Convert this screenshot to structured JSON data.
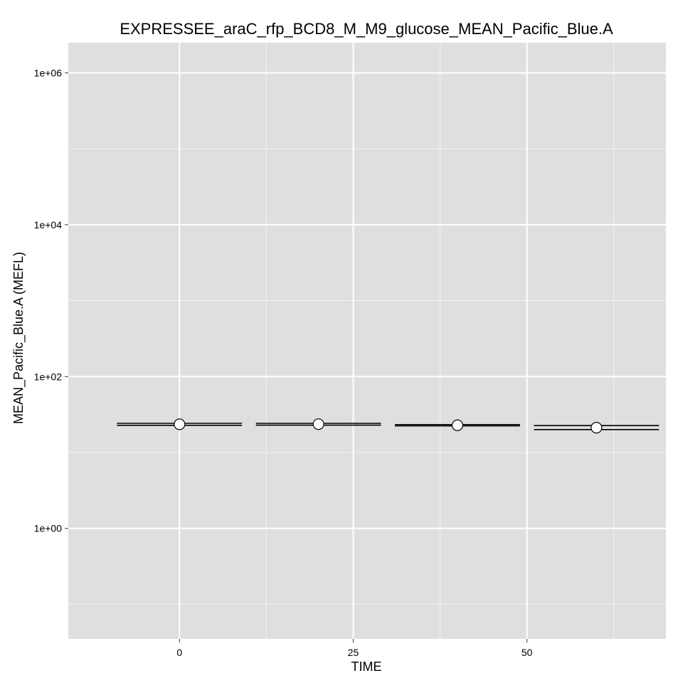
{
  "chart_data": {
    "type": "scatter",
    "title": "EXPRESSEE_araC_rfp_BCD8_M_M9_glucose_MEAN_Pacific_Blue.A",
    "xlabel": "TIME",
    "ylabel": "MEAN_Pacific_Blue.A  (MEFL)",
    "x_ticks": [
      0,
      25,
      50
    ],
    "x_tick_labels": [
      "0",
      "25",
      "50"
    ],
    "y_ticks": [
      1,
      100,
      10000,
      1000000
    ],
    "y_tick_labels": [
      "1e+00",
      "1e+02",
      "1e+04",
      "1e+06"
    ],
    "y_scale": "log10",
    "xlim": [
      -16,
      70
    ],
    "ylim": [
      0.035,
      2500000
    ],
    "grid": true,
    "background": "#dfdfdf",
    "gridline_color": "#ffffff",
    "points": [
      {
        "x": 0,
        "y": 23.5
      },
      {
        "x": 20,
        "y": 23.6
      },
      {
        "x": 40,
        "y": 22.8
      },
      {
        "x": 60,
        "y": 21.2
      }
    ],
    "range_bars": [
      {
        "x_start": -9,
        "x_end": 9,
        "y": [
          24.2,
          22.8
        ]
      },
      {
        "x_start": 11,
        "x_end": 29,
        "y": [
          24.2,
          22.9
        ]
      },
      {
        "x_start": 31,
        "x_end": 49,
        "y": [
          23.3,
          22.4
        ]
      },
      {
        "x_start": 51,
        "x_end": 69,
        "y": [
          22.6,
          20.0
        ]
      }
    ]
  }
}
